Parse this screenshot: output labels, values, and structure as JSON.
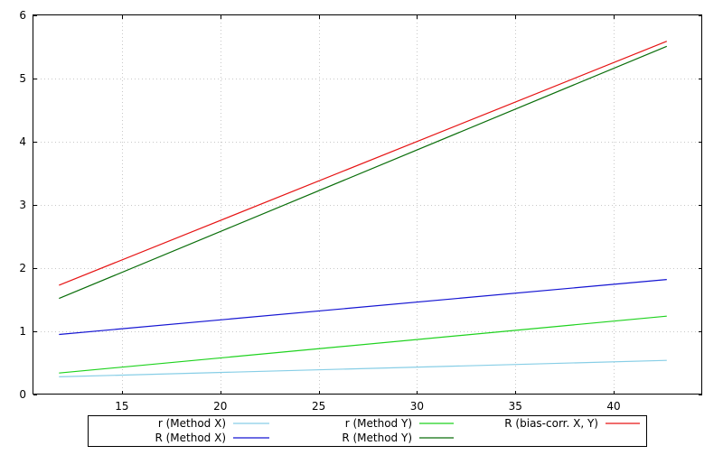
{
  "chart_data": {
    "type": "line",
    "title": "",
    "xlabel": "",
    "ylabel": "",
    "xlim": [
      10.5,
      44.5
    ],
    "ylim": [
      0,
      6
    ],
    "xticks": [
      15,
      20,
      25,
      30,
      35,
      40
    ],
    "yticks": [
      0,
      1,
      2,
      3,
      4,
      5,
      6
    ],
    "grid": true,
    "legend_position": "bottom",
    "series": [
      {
        "name": "r (Method X)",
        "color": "#87cee6",
        "x": [
          11.8,
          42.7
        ],
        "y": [
          0.28,
          0.54
        ]
      },
      {
        "name": "R (Method X)",
        "color": "#1414d2",
        "x": [
          11.8,
          42.7
        ],
        "y": [
          0.95,
          1.82
        ]
      },
      {
        "name": "r (Method Y)",
        "color": "#1ed21e",
        "x": [
          11.8,
          42.7
        ],
        "y": [
          0.34,
          1.24
        ]
      },
      {
        "name": "R (Method Y)",
        "color": "#0a6e0a",
        "x": [
          11.8,
          42.7
        ],
        "y": [
          1.52,
          5.51
        ]
      },
      {
        "name": "R (bias-corr. X, Y)",
        "color": "#e61414",
        "x": [
          11.8,
          42.7
        ],
        "y": [
          1.73,
          5.59
        ]
      }
    ]
  }
}
